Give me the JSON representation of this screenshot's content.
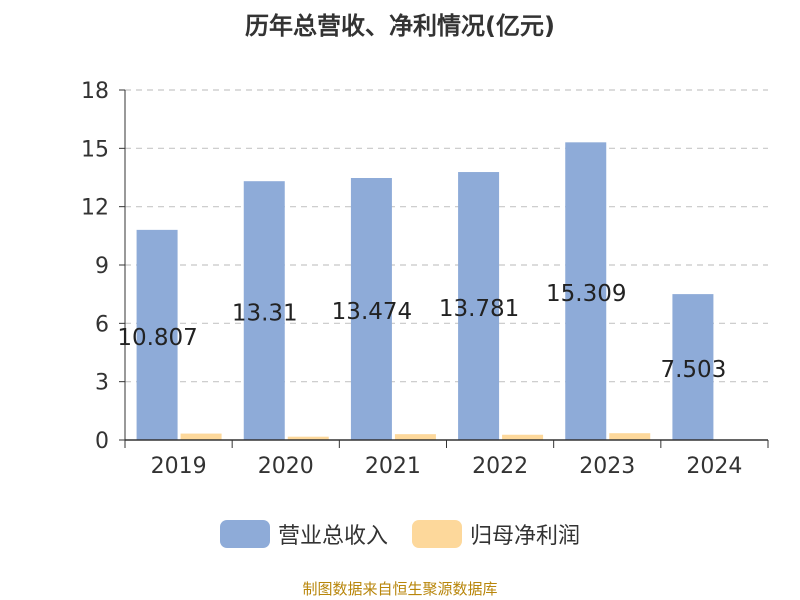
{
  "chart_data": {
    "type": "bar",
    "title": "历年总营收、净利情况(亿元)",
    "categories": [
      "2019",
      "2020",
      "2021",
      "2022",
      "2023",
      "2024"
    ],
    "series": [
      {
        "name": "营业总收入",
        "values": [
          10.807,
          13.31,
          13.474,
          13.781,
          15.309,
          7.503
        ],
        "color": "#8eabd8",
        "labels": [
          "10.807",
          "13.31",
          "13.474",
          "13.781",
          "15.309",
          "7.503"
        ]
      },
      {
        "name": "归母净利润",
        "values": [
          0.33,
          0.17,
          0.3,
          0.27,
          0.35,
          0.0
        ],
        "color": "#fdd89b"
      }
    ],
    "ylim": [
      0,
      18
    ],
    "yticks": [
      "0",
      "3",
      "6",
      "9",
      "12",
      "15",
      "18"
    ],
    "grid": true,
    "legend_position": "bottom",
    "source": "制图数据来自恒生聚源数据库"
  }
}
